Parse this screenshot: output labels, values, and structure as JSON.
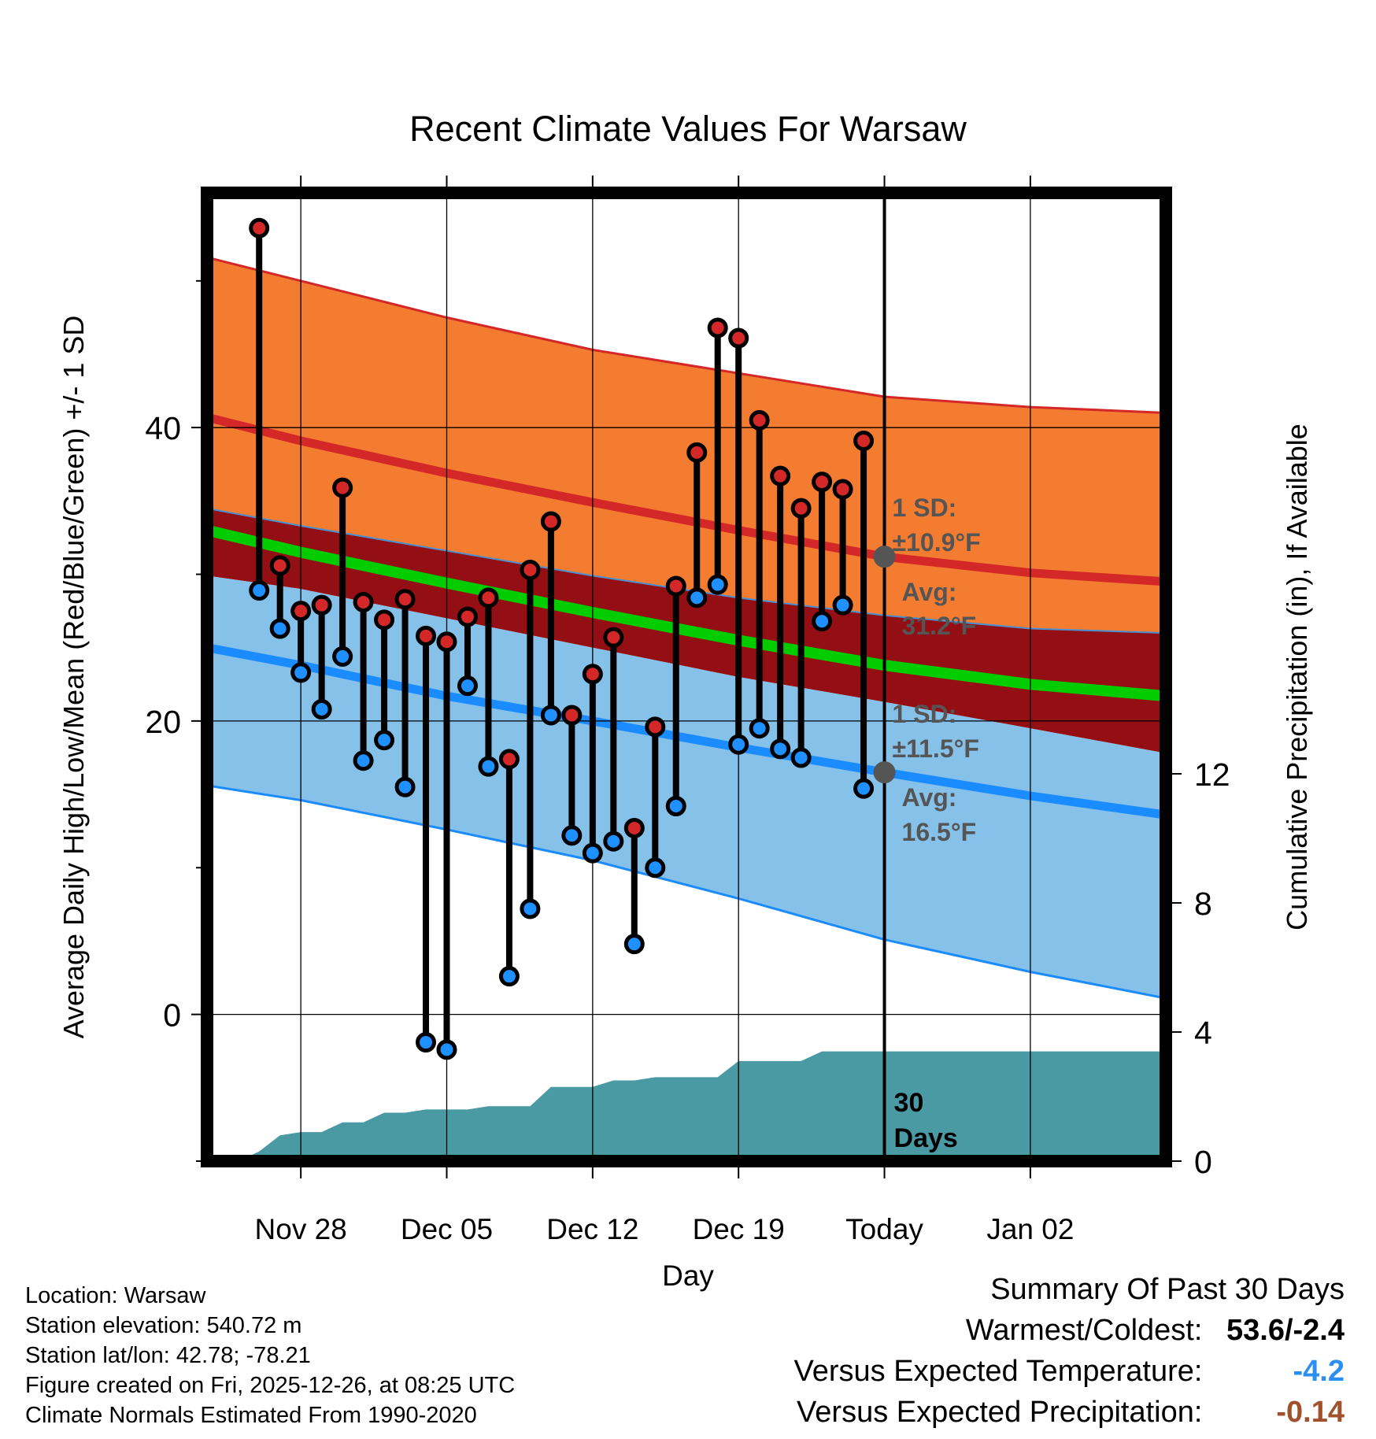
{
  "chart_data": {
    "type": "line",
    "title": "Recent Climate Values For Warsaw",
    "xlabel": "Day",
    "ylabel": "Average Daily High/Low/Mean (Red/Blue/Green) +/- 1 SD",
    "y2label": "Cumulative Precipitation (in), If Available",
    "ylim": [
      -10,
      56
    ],
    "y2lim": [
      0,
      30
    ],
    "y_ticks": [
      0,
      20,
      40
    ],
    "y_minor_ticks": [
      -10,
      10,
      30,
      50
    ],
    "y2_ticks": [
      0,
      4,
      8,
      12
    ],
    "xlim": [
      -4.5,
      41.5
    ],
    "x_ticks": [
      {
        "day": 0,
        "label": "Nov 28"
      },
      {
        "day": 7,
        "label": "Dec 05"
      },
      {
        "day": 14,
        "label": "Dec 12"
      },
      {
        "day": 21,
        "label": "Dec 19"
      },
      {
        "day": 28,
        "label": "Today"
      },
      {
        "day": 35,
        "label": "Jan 02"
      }
    ],
    "today_day": 28,
    "period_label": [
      "30",
      "Days"
    ],
    "daily": {
      "day": [
        -2,
        -1,
        0,
        1,
        2,
        3,
        4,
        5,
        6,
        7,
        8,
        9,
        10,
        11,
        12,
        13,
        14,
        15,
        16,
        17,
        18,
        19,
        20,
        21,
        22,
        23,
        24,
        25,
        26,
        27
      ],
      "high": [
        53.6,
        30.6,
        27.5,
        27.9,
        35.9,
        28.1,
        26.9,
        28.3,
        25.8,
        25.4,
        27.1,
        28.4,
        17.4,
        30.3,
        33.6,
        20.4,
        23.2,
        25.7,
        12.7,
        19.6,
        29.2,
        38.3,
        46.8,
        46.1,
        40.5,
        36.7,
        34.5,
        36.3,
        35.8,
        39.1
      ],
      "low": [
        28.9,
        26.3,
        23.3,
        20.8,
        24.4,
        17.3,
        18.7,
        15.5,
        -1.9,
        -2.4,
        22.4,
        16.9,
        2.6,
        7.2,
        20.4,
        12.2,
        11.0,
        11.8,
        4.8,
        10.0,
        14.2,
        28.4,
        29.3,
        18.4,
        19.5,
        18.1,
        17.5,
        26.8,
        27.9,
        15.4
      ]
    },
    "normals": {
      "day": [
        -4.5,
        0,
        7,
        14,
        21,
        28,
        35,
        41.5
      ],
      "high_mean": [
        40.7,
        39.1,
        36.9,
        34.9,
        33.0,
        31.2,
        30.1,
        29.5
      ],
      "high_upper": [
        51.6,
        50.0,
        47.5,
        45.3,
        43.7,
        42.1,
        41.4,
        41.0
      ],
      "high_lower": [
        34.5,
        33.3,
        31.6,
        29.9,
        28.4,
        27.2,
        26.3,
        26.0
      ],
      "mean": [
        33.0,
        31.5,
        29.4,
        27.4,
        25.5,
        23.8,
        22.5,
        21.7
      ],
      "low_mean": [
        25.0,
        23.8,
        21.7,
        20.0,
        18.2,
        16.5,
        14.9,
        13.6
      ],
      "low_upper": [
        29.9,
        29.0,
        27.0,
        25.0,
        23.0,
        21.3,
        19.5,
        17.8
      ],
      "low_lower": [
        15.6,
        14.6,
        12.6,
        10.5,
        7.9,
        5.1,
        2.9,
        1.1
      ]
    },
    "precip_cumulative": {
      "day": [
        -3,
        -2,
        -1,
        0,
        1,
        2,
        3,
        4,
        5,
        6,
        7,
        8,
        9,
        10,
        11,
        12,
        13,
        14,
        15,
        16,
        17,
        18,
        19,
        20,
        21,
        22,
        23,
        24,
        25,
        26,
        27,
        41.5
      ],
      "value": [
        0.0,
        0.3,
        0.8,
        0.9,
        0.9,
        1.2,
        1.2,
        1.5,
        1.5,
        1.6,
        1.6,
        1.6,
        1.7,
        1.7,
        1.7,
        2.3,
        2.3,
        2.3,
        2.5,
        2.5,
        2.6,
        2.6,
        2.6,
        2.6,
        3.1,
        3.1,
        3.1,
        3.1,
        3.4,
        3.4,
        3.4,
        3.4
      ]
    },
    "annotations": {
      "high_sd": {
        "label": "1 SD:",
        "value": "±10.9°F"
      },
      "high_avg": {
        "label": "Avg:",
        "value": "31.2°F"
      },
      "low_sd": {
        "label": "1 SD:",
        "value": "±11.5°F"
      },
      "low_avg": {
        "label": "Avg:",
        "value": "16.5°F"
      }
    },
    "colors": {
      "high_band": "#f47c30",
      "high_line": "#d42828",
      "mid_band": "#930f14",
      "mean_line": "#00cc00",
      "low_band": "#85c1e9",
      "low_line": "#1a8cff",
      "precip": "#4a9aa4",
      "marker_high": "#d42828",
      "marker_low": "#1e90ff",
      "annotation": "#555555"
    }
  },
  "info": {
    "location": "Location: Warsaw",
    "elevation": "Station elevation: 540.72 m",
    "latlon": "Station lat/lon: 42.78; -78.21",
    "created": "Figure created on Fri, 2025-12-26, at 08:25 UTC",
    "normals": "Climate Normals Estimated From 1990-2020"
  },
  "summary": {
    "title": "Summary Of Past 30 Days",
    "warmest_coldest_label": "Warmest/Coldest:",
    "warmest_coldest_value": "53.6/-2.4",
    "temp_label": "Versus Expected Temperature:",
    "temp_value": "-4.2",
    "temp_color": "#2b8ff0",
    "precip_label": "Versus Expected Precipitation:",
    "precip_value": "-0.14",
    "precip_color": "#a0522d"
  }
}
